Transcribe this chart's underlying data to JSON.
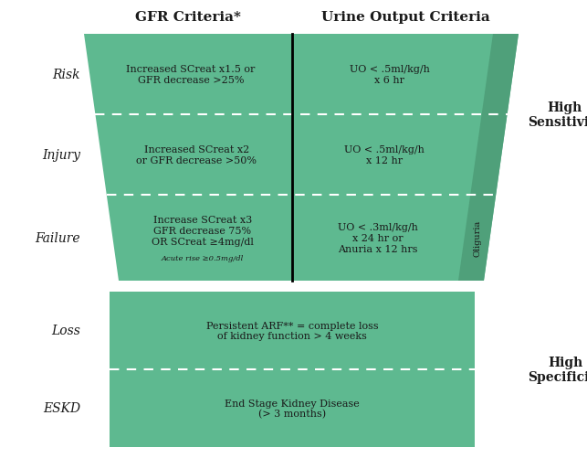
{
  "title_gfr": "GFR Criteria*",
  "title_uo": "Urine Output Criteria",
  "bg_color": "#ffffff",
  "green_color": "#5EB990",
  "green_darker": "#4FA07A",
  "text_color": "#1a1a1a",
  "rows": [
    {
      "label": "Risk",
      "gfr_text": "Increased SCreat x1.5 or\nGFR decrease >25%",
      "uo_text": "UO < .5ml/kg/h\nx 6 hr"
    },
    {
      "label": "Injury",
      "gfr_text": "Increased SCreat x2\nor GFR decrease >50%",
      "uo_text": "UO < .5ml/kg/h\nx 12 hr"
    },
    {
      "label": "Failure",
      "gfr_text": "Increase SCreat x3\nGFR decrease 75%\nOR SCreat ≥4mg/dl",
      "gfr_subtext": "Acute rise ≥0.5mg/dl",
      "uo_text": "UO < .3ml/kg/h\nx 24 hr or\nAnuria x 12 hrs"
    },
    {
      "label": "Loss",
      "text": "Persistent ARF** = complete loss\nof kidney function > 4 weeks"
    },
    {
      "label": "ESKD",
      "text": "End Stage Kidney Disease\n(> 3 months)"
    }
  ],
  "oliguria_text": "Oliguria",
  "high_sensitivity": "High\nSensitivity",
  "high_specificity": "High\nSpecificity"
}
